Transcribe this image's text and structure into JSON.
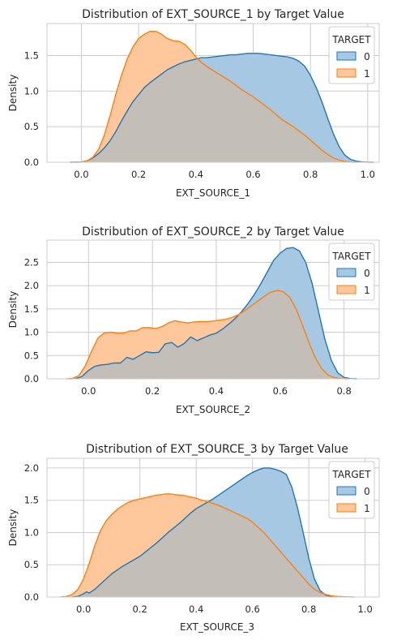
{
  "colors": {
    "series0_line": "#1f77b4",
    "series0_fill": "#a6c8e3",
    "series1_line": "#ff7f0e",
    "series1_fill": "#ffc79c",
    "overlap_fill": "#c3beb7",
    "grid": "#cccccc",
    "frame": "#cccccc",
    "text": "#262626",
    "background": "#ffffff"
  },
  "chart_data": [
    {
      "type": "area",
      "title": "Distribution of EXT_SOURCE_1 by Target Value",
      "xlabel": "EXT_SOURCE_1",
      "ylabel": "Density",
      "xlim": [
        -0.12,
        1.04
      ],
      "ylim": [
        0,
        1.95
      ],
      "xticks": [
        "0.0",
        "0.2",
        "0.4",
        "0.6",
        "0.8",
        "1.0"
      ],
      "yticks": [
        "0.0",
        "0.5",
        "1.0",
        "1.5"
      ],
      "grid": true,
      "legend": {
        "title": "TARGET",
        "placement": "top-right",
        "entries": [
          "0",
          "1"
        ]
      },
      "series": [
        {
          "name": "0",
          "x": [
            -0.04,
            0.0,
            0.02,
            0.04,
            0.06,
            0.08,
            0.1,
            0.12,
            0.14,
            0.16,
            0.18,
            0.2,
            0.22,
            0.24,
            0.26,
            0.28,
            0.3,
            0.32,
            0.34,
            0.36,
            0.38,
            0.4,
            0.42,
            0.44,
            0.46,
            0.48,
            0.5,
            0.52,
            0.54,
            0.56,
            0.58,
            0.6,
            0.62,
            0.64,
            0.66,
            0.68,
            0.7,
            0.72,
            0.74,
            0.76,
            0.78,
            0.8,
            0.82,
            0.84,
            0.86,
            0.88,
            0.9,
            0.92,
            0.94,
            0.96,
            0.98,
            1.0,
            1.02
          ],
          "values": [
            0.0,
            0.003,
            0.02,
            0.06,
            0.12,
            0.2,
            0.3,
            0.43,
            0.58,
            0.72,
            0.85,
            0.95,
            1.05,
            1.12,
            1.18,
            1.24,
            1.3,
            1.34,
            1.38,
            1.41,
            1.43,
            1.45,
            1.47,
            1.47,
            1.48,
            1.49,
            1.5,
            1.51,
            1.51,
            1.52,
            1.53,
            1.53,
            1.53,
            1.52,
            1.51,
            1.5,
            1.49,
            1.48,
            1.46,
            1.42,
            1.35,
            1.22,
            1.05,
            0.85,
            0.62,
            0.4,
            0.22,
            0.1,
            0.04,
            0.015,
            0.005,
            0.001,
            0.0
          ]
        },
        {
          "name": "1",
          "x": [
            -0.02,
            0.0,
            0.02,
            0.04,
            0.06,
            0.08,
            0.1,
            0.12,
            0.14,
            0.16,
            0.18,
            0.2,
            0.22,
            0.24,
            0.26,
            0.28,
            0.3,
            0.32,
            0.34,
            0.36,
            0.38,
            0.4,
            0.42,
            0.44,
            0.46,
            0.48,
            0.5,
            0.52,
            0.54,
            0.56,
            0.58,
            0.6,
            0.62,
            0.64,
            0.66,
            0.68,
            0.7,
            0.72,
            0.74,
            0.76,
            0.78,
            0.8,
            0.82,
            0.84,
            0.86,
            0.88,
            0.9,
            0.92,
            0.94,
            0.96
          ],
          "values": [
            0.0,
            0.003,
            0.02,
            0.07,
            0.18,
            0.38,
            0.65,
            0.95,
            1.22,
            1.45,
            1.62,
            1.74,
            1.8,
            1.84,
            1.84,
            1.8,
            1.74,
            1.71,
            1.7,
            1.66,
            1.58,
            1.48,
            1.4,
            1.34,
            1.29,
            1.24,
            1.19,
            1.14,
            1.08,
            1.02,
            0.97,
            0.92,
            0.86,
            0.8,
            0.74,
            0.67,
            0.6,
            0.55,
            0.5,
            0.44,
            0.38,
            0.31,
            0.24,
            0.17,
            0.11,
            0.06,
            0.03,
            0.01,
            0.003,
            0.0
          ]
        }
      ]
    },
    {
      "type": "area",
      "title": "Distribution of EXT_SOURCE_2 by Target Value",
      "xlabel": "EXT_SOURCE_2",
      "ylabel": "Density",
      "xlim": [
        -0.13,
        0.91
      ],
      "ylim": [
        0,
        2.98
      ],
      "xticks": [
        "0.0",
        "0.2",
        "0.4",
        "0.6",
        "0.8"
      ],
      "yticks": [
        "0.0",
        "0.5",
        "1.0",
        "1.5",
        "2.0",
        "2.5"
      ],
      "grid": true,
      "legend": {
        "title": "TARGET",
        "placement": "top-right",
        "entries": [
          "0",
          "1"
        ]
      },
      "series": [
        {
          "name": "0",
          "x": [
            -0.06,
            -0.04,
            -0.02,
            0.0,
            0.02,
            0.04,
            0.06,
            0.08,
            0.1,
            0.12,
            0.14,
            0.16,
            0.18,
            0.2,
            0.22,
            0.24,
            0.26,
            0.28,
            0.3,
            0.32,
            0.34,
            0.36,
            0.38,
            0.4,
            0.42,
            0.44,
            0.46,
            0.48,
            0.5,
            0.52,
            0.54,
            0.56,
            0.58,
            0.6,
            0.62,
            0.64,
            0.66,
            0.68,
            0.7,
            0.72,
            0.74,
            0.76,
            0.78,
            0.8,
            0.82,
            0.84
          ],
          "values": [
            0.0,
            0.005,
            0.05,
            0.18,
            0.27,
            0.3,
            0.31,
            0.34,
            0.34,
            0.46,
            0.42,
            0.5,
            0.58,
            0.56,
            0.57,
            0.75,
            0.78,
            0.68,
            0.76,
            0.9,
            0.82,
            0.88,
            0.94,
            0.98,
            1.07,
            1.18,
            1.3,
            1.45,
            1.62,
            1.82,
            2.05,
            2.3,
            2.55,
            2.7,
            2.8,
            2.82,
            2.75,
            2.5,
            2.05,
            1.45,
            0.85,
            0.4,
            0.13,
            0.03,
            0.005,
            0.0
          ]
        },
        {
          "name": "1",
          "x": [
            -0.07,
            -0.05,
            -0.03,
            -0.01,
            0.01,
            0.03,
            0.05,
            0.07,
            0.09,
            0.11,
            0.13,
            0.15,
            0.17,
            0.19,
            0.21,
            0.23,
            0.25,
            0.27,
            0.29,
            0.31,
            0.33,
            0.35,
            0.37,
            0.39,
            0.41,
            0.43,
            0.45,
            0.47,
            0.49,
            0.51,
            0.53,
            0.55,
            0.57,
            0.59,
            0.61,
            0.63,
            0.65,
            0.67,
            0.69,
            0.71,
            0.73,
            0.75,
            0.77,
            0.79,
            0.81
          ],
          "values": [
            0.0,
            0.01,
            0.07,
            0.28,
            0.6,
            0.88,
            0.99,
            1.0,
            0.98,
            0.98,
            1.03,
            1.03,
            1.1,
            1.1,
            1.08,
            1.12,
            1.2,
            1.25,
            1.22,
            1.2,
            1.22,
            1.23,
            1.23,
            1.24,
            1.26,
            1.28,
            1.32,
            1.38,
            1.47,
            1.57,
            1.67,
            1.77,
            1.86,
            1.9,
            1.87,
            1.75,
            1.5,
            1.15,
            0.78,
            0.45,
            0.22,
            0.08,
            0.025,
            0.005,
            0.0
          ]
        }
      ]
    },
    {
      "type": "area",
      "title": "Distribution of EXT_SOURCE_3 by Target Value",
      "xlabel": "EXT_SOURCE_3",
      "ylabel": "Density",
      "xlim": [
        -0.13,
        1.05
      ],
      "ylim": [
        0,
        2.15
      ],
      "xticks": [
        "0.0",
        "0.2",
        "0.4",
        "0.6",
        "0.8",
        "1.0"
      ],
      "yticks": [
        "0.0",
        "0.5",
        "1.0",
        "1.5",
        "2.0"
      ],
      "grid": true,
      "legend": {
        "title": "TARGET",
        "placement": "top-right",
        "entries": [
          "0",
          "1"
        ]
      },
      "series": [
        {
          "name": "0",
          "x": [
            -0.04,
            -0.02,
            0.0,
            0.01,
            0.02,
            0.04,
            0.06,
            0.08,
            0.1,
            0.12,
            0.14,
            0.16,
            0.18,
            0.2,
            0.22,
            0.24,
            0.26,
            0.28,
            0.3,
            0.32,
            0.34,
            0.36,
            0.38,
            0.4,
            0.42,
            0.44,
            0.46,
            0.48,
            0.5,
            0.52,
            0.54,
            0.56,
            0.58,
            0.6,
            0.62,
            0.64,
            0.66,
            0.68,
            0.7,
            0.72,
            0.74,
            0.76,
            0.78,
            0.8,
            0.82,
            0.84,
            0.86,
            0.88,
            0.9
          ],
          "values": [
            0.0,
            0.01,
            0.05,
            0.08,
            0.06,
            0.12,
            0.2,
            0.28,
            0.36,
            0.42,
            0.48,
            0.53,
            0.58,
            0.63,
            0.7,
            0.77,
            0.84,
            0.92,
            1.0,
            1.07,
            1.14,
            1.22,
            1.3,
            1.37,
            1.42,
            1.47,
            1.52,
            1.58,
            1.64,
            1.7,
            1.76,
            1.82,
            1.88,
            1.93,
            1.97,
            2.0,
            2.0,
            1.98,
            1.95,
            1.9,
            1.7,
            1.38,
            1.0,
            0.6,
            0.28,
            0.1,
            0.03,
            0.01,
            0.0
          ]
        },
        {
          "name": "1",
          "x": [
            -0.08,
            -0.06,
            -0.04,
            -0.02,
            0.0,
            0.02,
            0.04,
            0.06,
            0.08,
            0.1,
            0.12,
            0.14,
            0.16,
            0.18,
            0.2,
            0.22,
            0.24,
            0.26,
            0.28,
            0.3,
            0.32,
            0.34,
            0.36,
            0.38,
            0.4,
            0.42,
            0.44,
            0.46,
            0.48,
            0.5,
            0.52,
            0.54,
            0.56,
            0.58,
            0.6,
            0.62,
            0.64,
            0.66,
            0.68,
            0.7,
            0.72,
            0.74,
            0.76,
            0.78,
            0.8,
            0.82,
            0.84,
            0.86,
            0.88,
            0.9,
            0.92,
            0.94,
            0.96
          ],
          "values": [
            0.0,
            0.01,
            0.04,
            0.12,
            0.28,
            0.52,
            0.8,
            1.03,
            1.18,
            1.28,
            1.36,
            1.42,
            1.47,
            1.5,
            1.52,
            1.54,
            1.56,
            1.58,
            1.59,
            1.6,
            1.59,
            1.58,
            1.57,
            1.55,
            1.53,
            1.5,
            1.48,
            1.45,
            1.42,
            1.38,
            1.34,
            1.3,
            1.26,
            1.22,
            1.16,
            1.08,
            1.0,
            0.9,
            0.8,
            0.7,
            0.6,
            0.5,
            0.4,
            0.3,
            0.2,
            0.12,
            0.07,
            0.04,
            0.02,
            0.01,
            0.005,
            0.002,
            0.0
          ]
        }
      ]
    }
  ]
}
